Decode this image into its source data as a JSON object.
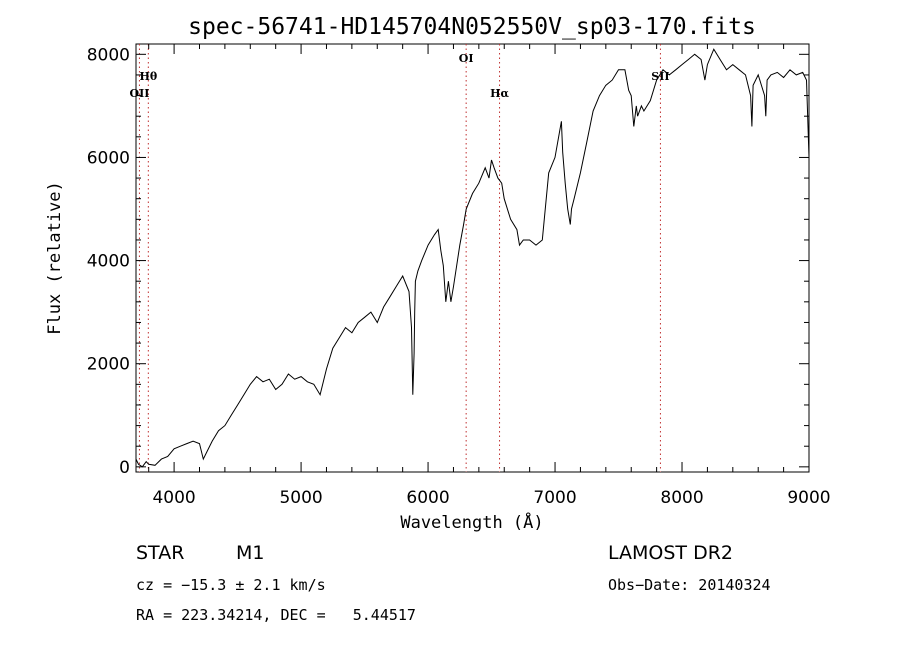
{
  "chart_data": {
    "type": "line",
    "title": "spec-56741-HD145704N052550V_sp03-170.fits",
    "xlabel": "Wavelength (Å)",
    "ylabel": "Flux (relative)",
    "xlim": [
      3700,
      9000
    ],
    "ylim": [
      -100,
      8200
    ],
    "x_ticks": [
      4000,
      5000,
      6000,
      7000,
      8000,
      9000
    ],
    "x_tick_labels": [
      "4000",
      "5000",
      "6000",
      "7000",
      "8000",
      "9000"
    ],
    "y_ticks": [
      0,
      2000,
      4000,
      6000,
      8000
    ],
    "y_tick_labels": [
      "0",
      "2000",
      "4000",
      "6000",
      "8000"
    ],
    "grid": false,
    "line_color": "#000000",
    "marker_line_color": "#c03030",
    "series": [
      {
        "x": [
          3700,
          3720,
          3750,
          3780,
          3800,
          3850,
          3900,
          3950,
          4000,
          4050,
          4100,
          4150,
          4200,
          4230,
          4260,
          4300,
          4350,
          4400,
          4450,
          4500,
          4550,
          4600,
          4650,
          4700,
          4750,
          4800,
          4850,
          4900,
          4950,
          5000,
          5050,
          5100,
          5150,
          5200,
          5250,
          5300,
          5350,
          5400,
          5450,
          5500,
          5550,
          5600,
          5650,
          5700,
          5750,
          5800,
          5850,
          5870,
          5880,
          5890,
          5895,
          5900,
          5920,
          5950,
          6000,
          6050,
          6080,
          6100,
          6120,
          6140,
          6160,
          6180,
          6200,
          6250,
          6280,
          6300,
          6350,
          6400,
          6450,
          6480,
          6500,
          6520,
          6550,
          6580,
          6600,
          6650,
          6700,
          6720,
          6750,
          6800,
          6850,
          6900,
          6950,
          7000,
          7050,
          7060,
          7080,
          7100,
          7120,
          7130,
          7150,
          7200,
          7250,
          7300,
          7350,
          7400,
          7450,
          7500,
          7550,
          7580,
          7600,
          7620,
          7640,
          7650,
          7680,
          7700,
          7750,
          7800,
          7850,
          7900,
          7950,
          8000,
          8050,
          8100,
          8150,
          8180,
          8200,
          8250,
          8300,
          8350,
          8400,
          8450,
          8500,
          8540,
          8550,
          8560,
          8600,
          8650,
          8660,
          8670,
          8700,
          8750,
          8800,
          8850,
          8900,
          8950,
          8980,
          9000
        ],
        "y": [
          150,
          50,
          0,
          100,
          50,
          30,
          150,
          200,
          350,
          400,
          450,
          500,
          450,
          150,
          300,
          500,
          700,
          800,
          1000,
          1200,
          1400,
          1600,
          1750,
          1650,
          1700,
          1500,
          1600,
          1800,
          1700,
          1750,
          1650,
          1600,
          1400,
          1900,
          2300,
          2500,
          2700,
          2600,
          2800,
          2900,
          3000,
          2800,
          3100,
          3300,
          3500,
          3700,
          3400,
          2700,
          1400,
          2200,
          3000,
          3600,
          3800,
          4000,
          4300,
          4500,
          4600,
          4200,
          3900,
          3200,
          3600,
          3200,
          3500,
          4300,
          4700,
          5000,
          5300,
          5500,
          5800,
          5600,
          5950,
          5800,
          5600,
          5500,
          5200,
          4800,
          4600,
          4300,
          4400,
          4400,
          4300,
          4400,
          5700,
          6000,
          6700,
          6100,
          5500,
          5000,
          4700,
          5000,
          5200,
          5700,
          6300,
          6900,
          7200,
          7400,
          7500,
          7700,
          7700,
          7300,
          7200,
          6600,
          7000,
          6800,
          7000,
          6900,
          7100,
          7500,
          7700,
          7600,
          7700,
          7800,
          7900,
          8000,
          7900,
          7500,
          7800,
          8100,
          7900,
          7700,
          7800,
          7700,
          7600,
          7200,
          6600,
          7400,
          7600,
          7200,
          6800,
          7500,
          7600,
          7650,
          7550,
          7700,
          7600,
          7650,
          7500,
          6000
        ]
      }
    ],
    "line_markers": [
      {
        "x": 3797,
        "label": "Hθ",
        "row": 1
      },
      {
        "x": 3727,
        "label": "OII",
        "row": 2
      },
      {
        "x": 6300,
        "label": "OI",
        "row": 0
      },
      {
        "x": 6563,
        "label": "Hα",
        "row": 2
      },
      {
        "x": 7830,
        "label": "SII",
        "row": 1
      }
    ]
  },
  "info": {
    "class": "STAR",
    "subclass": "M1",
    "survey": "LAMOST DR2",
    "cz": "cz = −15.3 ± 2.1 km/s",
    "obs_date": "Obs−Date: 20140324",
    "radec": "RA = 223.34214, DEC =   5.44517"
  }
}
